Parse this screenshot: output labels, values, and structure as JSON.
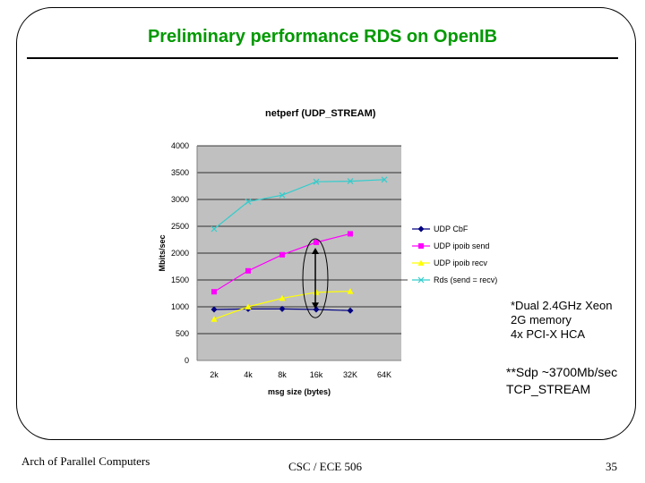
{
  "slide": {
    "title": "Preliminary performance RDS on OpenIB",
    "note1": [
      "*Dual 2.4GHz Xeon",
      "2G memory",
      "4x PCI-X HCA"
    ],
    "note2": [
      "**Sdp ~3700Mb/sec",
      "TCP_STREAM"
    ],
    "footer_left": "Arch of Parallel Computers",
    "footer_mid": "CSC / ECE 506",
    "footer_right": "35"
  },
  "colors": {
    "title": "#009900",
    "plot_bg": "#c0c0c0",
    "udp_cbf": "#000080",
    "udp_ipoib_send": "#ff00ff",
    "udp_ipoib_recv": "#ffff00",
    "rds": "#33cccc"
  },
  "chart_data": {
    "type": "line",
    "title": "netperf (UDP_STREAM)",
    "xlabel": "msg size (bytes)",
    "ylabel": "Mbits/sec",
    "categories": [
      "2k",
      "4k",
      "8k",
      "16k",
      "32K",
      "64K"
    ],
    "ylim": [
      0,
      4000
    ],
    "yticks": [
      0,
      500,
      1000,
      1500,
      2000,
      2500,
      3000,
      3500,
      4000
    ],
    "legend_position": "right",
    "series": [
      {
        "name": "UDP CbF",
        "marker": "diamond",
        "color": "#000080",
        "values": [
          950,
          960,
          960,
          950,
          930,
          null
        ]
      },
      {
        "name": "UDP ipoib send",
        "marker": "square",
        "color": "#ff00ff",
        "values": [
          1280,
          1670,
          1970,
          2200,
          2360,
          null
        ]
      },
      {
        "name": "UDP ipoib recv",
        "marker": "triangle",
        "color": "#ffff00",
        "values": [
          770,
          1000,
          1160,
          1270,
          1290,
          null
        ]
      },
      {
        "name": "Rds (send = recv)",
        "marker": "x",
        "color": "#33cccc",
        "values": [
          2450,
          2960,
          3080,
          3330,
          3340,
          3370
        ]
      }
    ],
    "annotation": {
      "category": "16k",
      "from": 930,
      "to": 2200,
      "shape": "double-arrow-in-ellipse"
    }
  }
}
